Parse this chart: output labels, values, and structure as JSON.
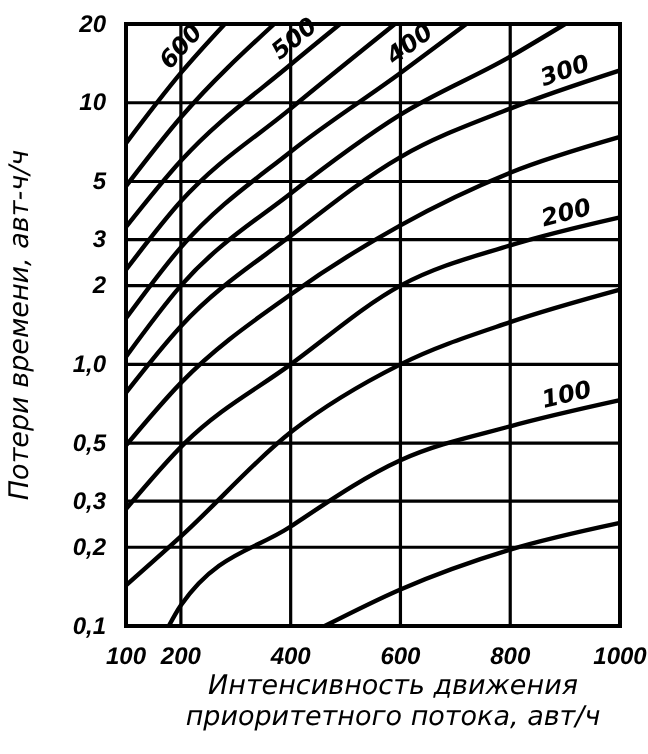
{
  "chart_data": {
    "type": "line",
    "xlabel": "Интенсивность движения\nприоритетного потока, авт/ч",
    "ylabel": "Потери времени, авт-ч/ч",
    "log": "y",
    "grid": true,
    "marker": "none",
    "line_style": "solid",
    "xlim": [
      100,
      1000
    ],
    "xticks": [
      100,
      200,
      400,
      600,
      800,
      1000
    ],
    "ylim": [
      0.1,
      20
    ],
    "yticks": [
      {
        "value": 0.1,
        "label": "0,1"
      },
      {
        "value": 0.2,
        "label": "0,2"
      },
      {
        "value": 0.3,
        "label": "0,3"
      },
      {
        "value": 0.5,
        "label": "0,5"
      },
      {
        "value": 1,
        "label": "1,0"
      },
      2,
      3,
      5,
      10,
      20
    ],
    "series": [
      {
        "color": "#000000",
        "x": [
          462,
          600,
          800,
          1000
        ],
        "values": [
          0.1,
          0.138,
          0.196,
          0.248
        ]
      },
      {
        "name": "100",
        "color": "#000000",
        "x": [
          178,
          200,
          400,
          600,
          800,
          1000
        ],
        "values": [
          0.1,
          0.12,
          0.24,
          0.43,
          0.58,
          0.73
        ]
      },
      {
        "color": "#000000",
        "x": [
          100,
          200,
          400,
          600,
          800,
          1000
        ],
        "values": [
          0.143,
          0.22,
          0.55,
          1.0,
          1.45,
          1.93
        ]
      },
      {
        "name": "200",
        "color": "#000000",
        "x": [
          100,
          207,
          400,
          600,
          800,
          1000
        ],
        "values": [
          0.28,
          0.5,
          1.0,
          2.0,
          2.85,
          3.65
        ]
      },
      {
        "color": "#000000",
        "x": [
          100,
          200,
          400,
          600,
          800,
          1000
        ],
        "values": [
          0.49,
          0.85,
          1.85,
          3.4,
          5.4,
          7.4
        ]
      },
      {
        "name": "300",
        "color": "#000000",
        "x": [
          100,
          200,
          400,
          600,
          800,
          1000
        ],
        "values": [
          0.78,
          1.4,
          3.1,
          6.2,
          9.5,
          13.3
        ]
      },
      {
        "color": "#000000",
        "x": [
          100,
          200,
          400,
          600,
          800,
          900
        ],
        "values": [
          1.07,
          2.0,
          4.5,
          9,
          15,
          20
        ]
      },
      {
        "name": "400",
        "color": "#000000",
        "x": [
          100,
          200,
          400,
          600,
          720
        ],
        "values": [
          1.5,
          2.8,
          6.5,
          13,
          20
        ]
      },
      {
        "color": "#000000",
        "x": [
          100,
          200,
          400,
          590
        ],
        "values": [
          2.3,
          4.2,
          9.5,
          20
        ]
      },
      {
        "name": "500",
        "color": "#000000",
        "x": [
          100,
          200,
          400,
          490
        ],
        "values": [
          3.35,
          6,
          14,
          20
        ]
      },
      {
        "color": "#000000",
        "x": [
          100,
          200,
          370
        ],
        "values": [
          4.8,
          8.8,
          20
        ]
      },
      {
        "name": "600",
        "color": "#000000",
        "x": [
          100,
          200,
          280
        ],
        "values": [
          7,
          13,
          20
        ]
      }
    ]
  }
}
